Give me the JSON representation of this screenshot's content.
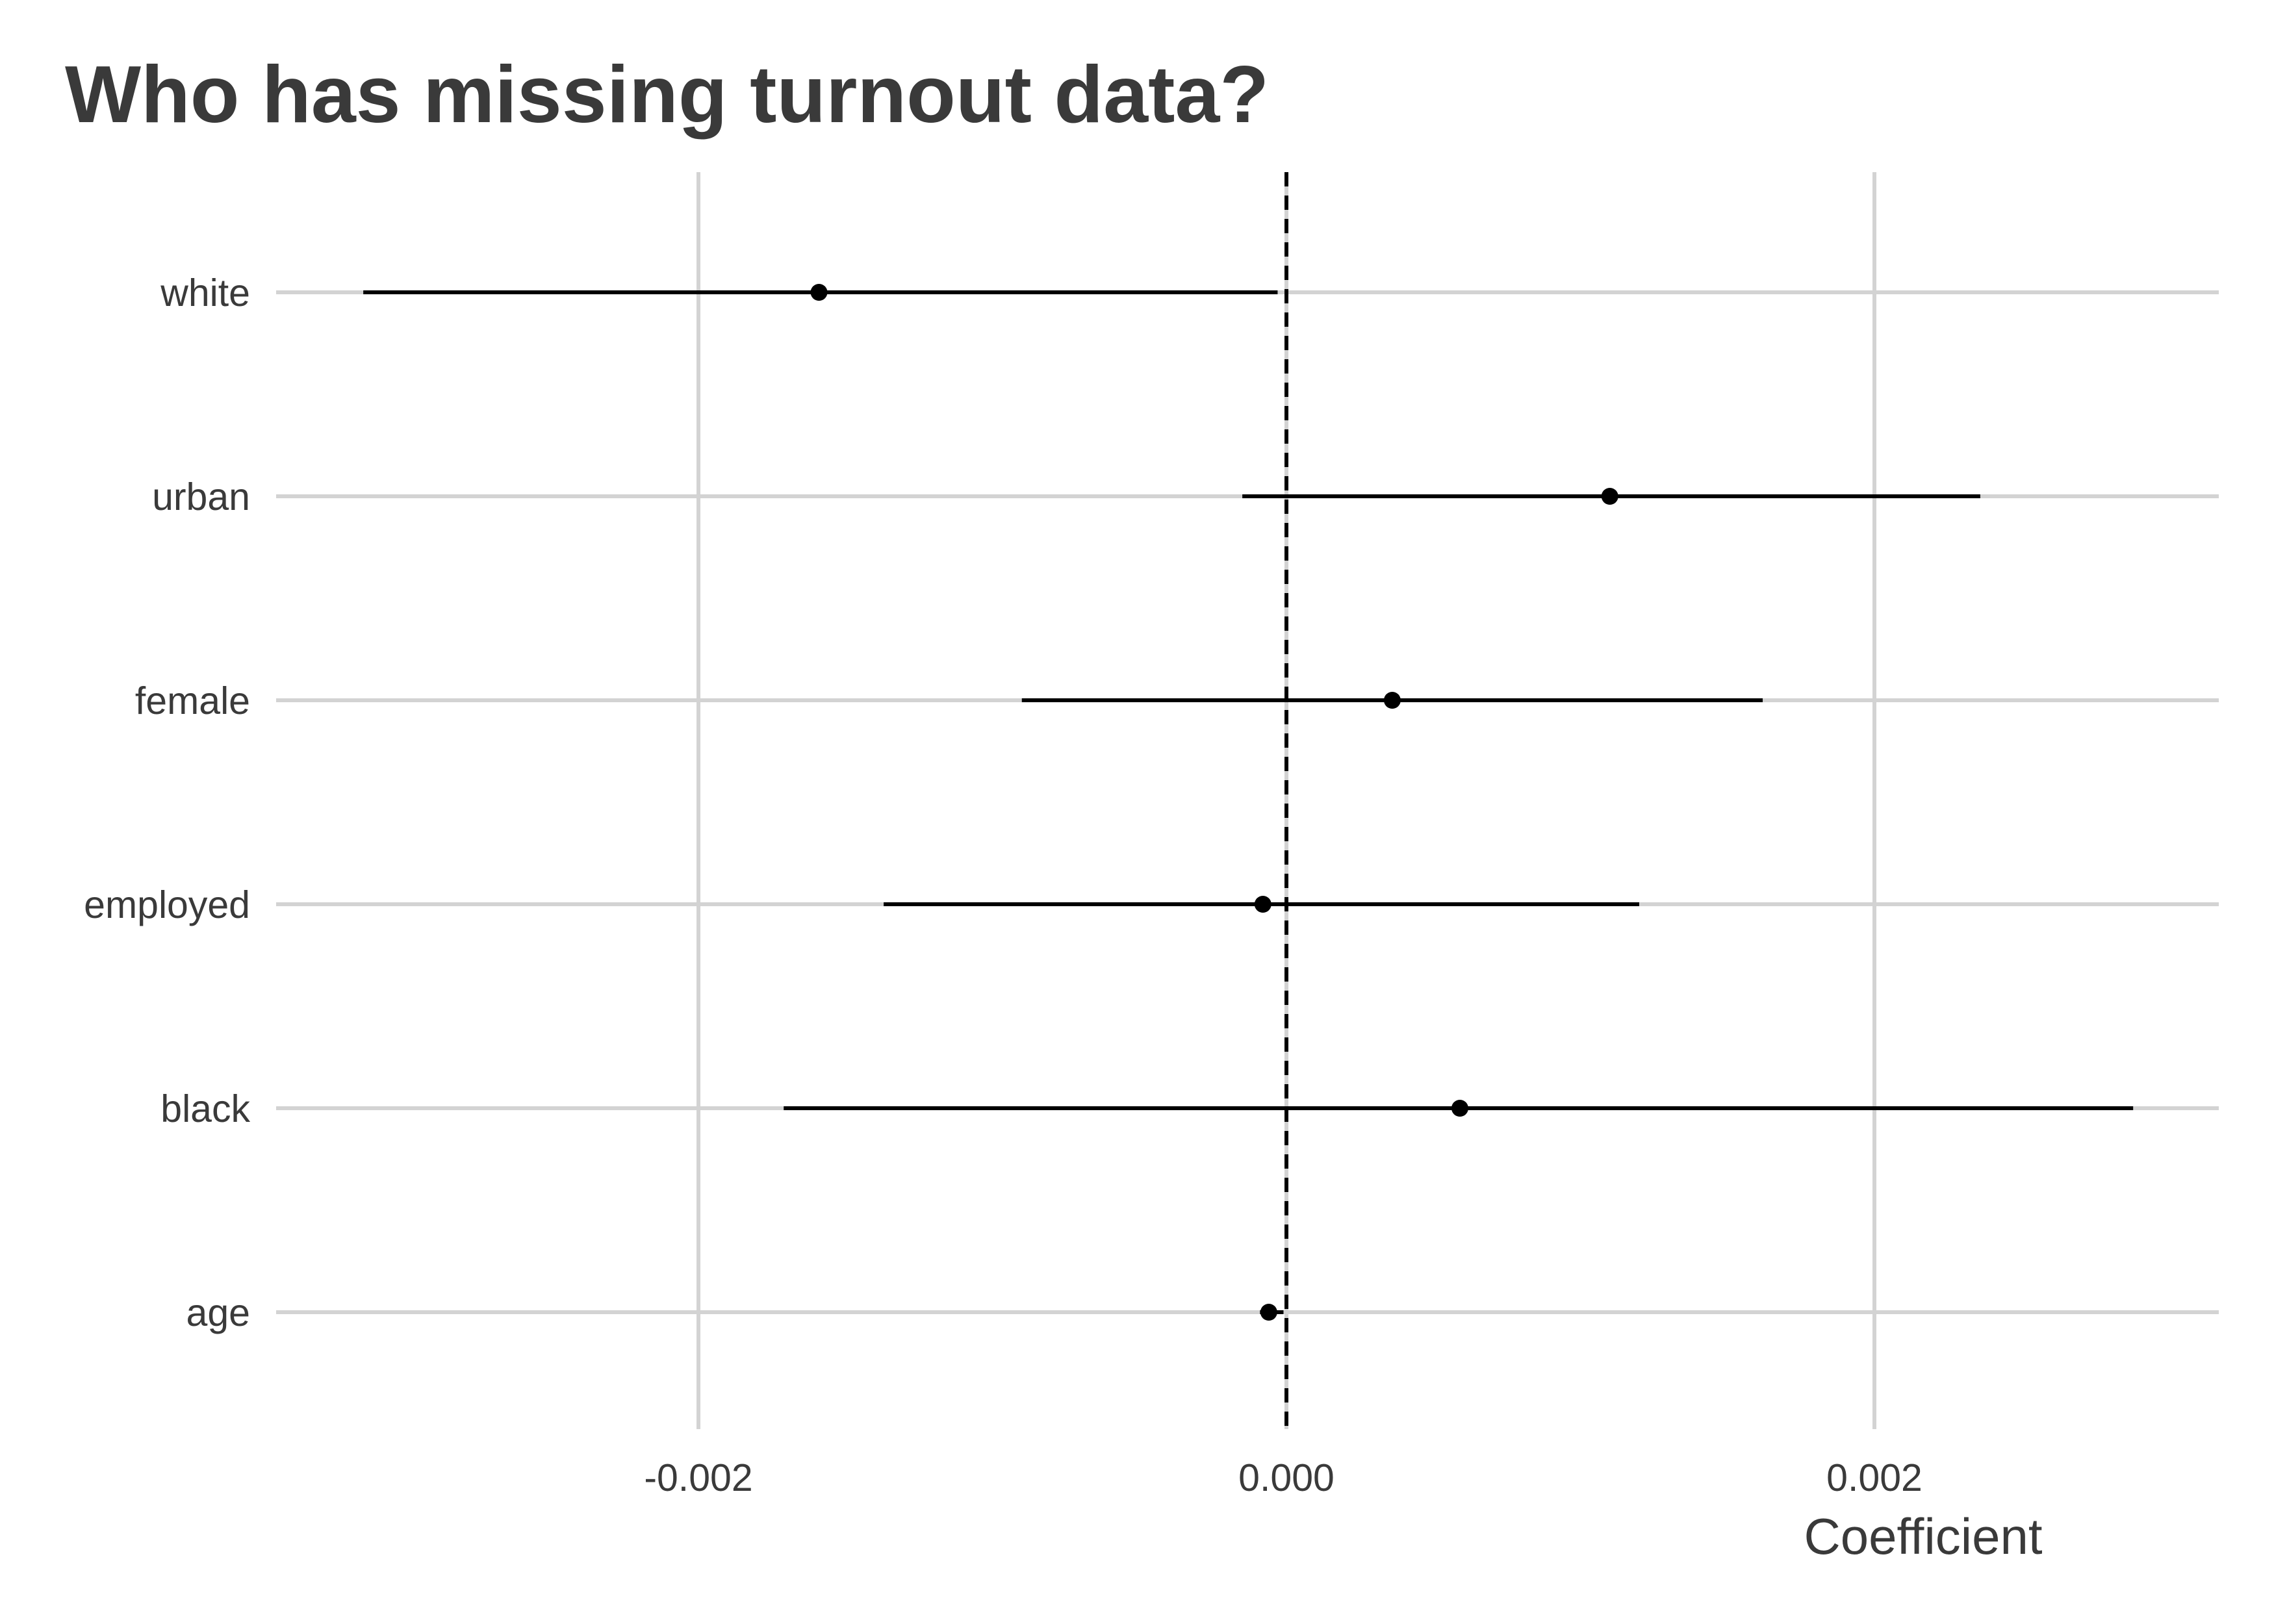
{
  "chart_data": {
    "type": "coefficient-plot",
    "title": "Who has missing turnout data?",
    "xlabel": "Coefficient",
    "ylabel": "",
    "xlim": [
      -0.0035,
      0.0032
    ],
    "x_ticks": [
      -0.002,
      0.0,
      0.002
    ],
    "x_tick_labels": [
      "-0.002",
      "0.000",
      "0.002"
    ],
    "reference_line": {
      "x": 0.0,
      "style": "dashed",
      "color": "#000000"
    },
    "grid": true,
    "legend": "none",
    "categories": [
      "white",
      "urban",
      "female",
      "employed",
      "black",
      "age"
    ],
    "estimates": [
      -0.00159,
      0.0011,
      0.00036,
      -8e-05,
      0.00059,
      -6e-05
    ],
    "ci_low": [
      -0.00314,
      -0.00015,
      -0.0009,
      -0.00137,
      -0.00171,
      -9e-05
    ],
    "ci_high": [
      -3e-05,
      0.00236,
      0.00162,
      0.0012,
      0.00288,
      -1e-05
    ],
    "colors": {
      "point": "#000000",
      "grid": "#d3d3d3",
      "text": "#3a3a3a"
    }
  }
}
